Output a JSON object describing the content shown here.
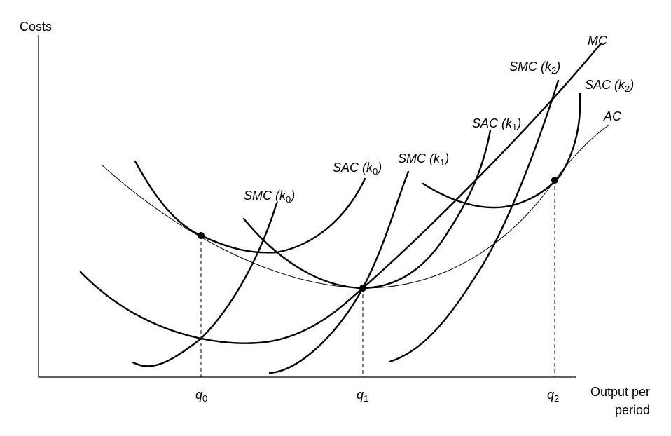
{
  "axes": {
    "y_label": "Costs",
    "x_label_line1": "Output per",
    "x_label_line2": "period"
  },
  "ticks": [
    {
      "base": "q",
      "sub": "0"
    },
    {
      "base": "q",
      "sub": "1"
    },
    {
      "base": "q",
      "sub": "2"
    }
  ],
  "curves": {
    "mc": {
      "label": "MC"
    },
    "ac": {
      "label": "AC"
    },
    "smc_k0": {
      "label_base": "SMC (k",
      "label_sub": "0",
      "label_end": ")"
    },
    "sac_k0": {
      "label_base": "SAC (k",
      "label_sub": "0",
      "label_end": ")"
    },
    "smc_k1": {
      "label_base": "SMC (k",
      "label_sub": "1",
      "label_end": ")"
    },
    "sac_k1": {
      "label_base": "SAC (k",
      "label_sub": "1",
      "label_end": ")"
    },
    "smc_k2": {
      "label_base": "SMC (k",
      "label_sub": "2",
      "label_end": ")"
    },
    "sac_k2": {
      "label_base": "SAC (k",
      "label_sub": "2",
      "label_end": ")"
    }
  }
}
